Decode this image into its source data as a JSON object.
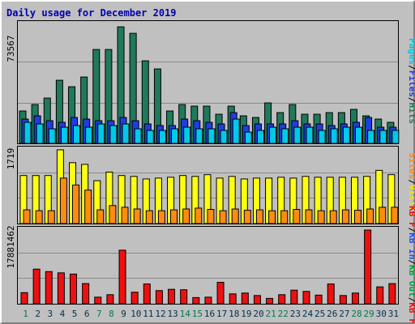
{
  "title": "Daily usage for December 2019",
  "colors": {
    "pages": "#00c8e8",
    "files": "#1e3ee0",
    "hits": "#1f7a5a",
    "visits": "#ffff10",
    "sites": "#ff8c10",
    "kbin": "#1e50ff",
    "kbout": "#00a040",
    "kbf": "#ee1010",
    "day_weekday": "#003050",
    "day_weekend": "#007a50"
  },
  "chart_data": [
    {
      "type": "bar",
      "panel": "hits-files-pages",
      "max_label": "73567",
      "ylim": [
        0,
        73567
      ],
      "legend": [
        "Pages",
        "/",
        "Files",
        "/",
        "Hits"
      ],
      "series": [
        {
          "name": "Hits",
          "values": [
            20000,
            24000,
            28000,
            39000,
            35000,
            41000,
            58000,
            58000,
            72000,
            68000,
            51000,
            46000,
            20000,
            24000,
            23000,
            23000,
            18000,
            23000,
            17000,
            16000,
            25000,
            19000,
            24000,
            18000,
            18000,
            19000,
            19000,
            21000,
            17000,
            15000,
            13000
          ]
        },
        {
          "name": "Files",
          "values": [
            15000,
            17000,
            14000,
            13000,
            16000,
            15000,
            14000,
            14000,
            16000,
            14000,
            12000,
            11000,
            11000,
            15000,
            14000,
            13000,
            12000,
            19000,
            11000,
            12000,
            12000,
            12000,
            14000,
            12000,
            12000,
            11000,
            12000,
            13000,
            16000,
            10000,
            10000
          ]
        },
        {
          "name": "Pages",
          "values": [
            13000,
            12000,
            9000,
            10000,
            11000,
            10000,
            12000,
            11000,
            12000,
            9000,
            8000,
            8000,
            9000,
            10000,
            9000,
            9000,
            8000,
            15000,
            7000,
            8000,
            10000,
            9000,
            10000,
            10000,
            8000,
            9000,
            10000,
            10000,
            8000,
            8000,
            8000
          ]
        }
      ]
    },
    {
      "type": "bar",
      "panel": "visits-sites",
      "max_label": "1719",
      "ylim": [
        0,
        1719
      ],
      "legend": [
        "Sites",
        "/",
        "Visits"
      ],
      "series": [
        {
          "name": "Visits",
          "values": [
            1120,
            1120,
            1120,
            1719,
            1420,
            1380,
            1000,
            1200,
            1120,
            1100,
            1040,
            1060,
            1080,
            1120,
            1100,
            1140,
            1060,
            1100,
            1040,
            1060,
            1060,
            1080,
            1060,
            1100,
            1080,
            1080,
            1080,
            1080,
            1100,
            1240,
            1140
          ]
        },
        {
          "name": "Sites",
          "values": [
            320,
            300,
            300,
            1060,
            900,
            780,
            320,
            420,
            380,
            340,
            300,
            300,
            320,
            340,
            360,
            330,
            300,
            340,
            310,
            320,
            300,
            300,
            330,
            320,
            300,
            300,
            320,
            310,
            340,
            380,
            380
          ]
        }
      ]
    },
    {
      "type": "bar",
      "panel": "kbytes",
      "max_label": "17881462",
      "ylim": [
        0,
        17881462
      ],
      "legend": [
        "KB F",
        "/",
        "KB In",
        "/",
        "KB Out",
        "/",
        "KB F"
      ],
      "series": [
        {
          "name": "KB F",
          "values": [
            2700000,
            8400000,
            7800000,
            7500000,
            7200000,
            4900000,
            1600000,
            2200000,
            13000000,
            2800000,
            4800000,
            3200000,
            3500000,
            3400000,
            1500000,
            1600000,
            5200000,
            2400000,
            2600000,
            2000000,
            1300000,
            2200000,
            3300000,
            3000000,
            2100000,
            4800000,
            2000000,
            2600000,
            17881462,
            4100000,
            4900000
          ]
        }
      ]
    }
  ],
  "days": [
    "1",
    "2",
    "3",
    "4",
    "5",
    "6",
    "7",
    "8",
    "9",
    "10",
    "11",
    "12",
    "13",
    "14",
    "15",
    "16",
    "17",
    "18",
    "19",
    "20",
    "21",
    "22",
    "23",
    "24",
    "25",
    "26",
    "27",
    "28",
    "29",
    "30",
    "31"
  ],
  "weekend_days": [
    1,
    7,
    8,
    14,
    15,
    21,
    22,
    28,
    29
  ]
}
